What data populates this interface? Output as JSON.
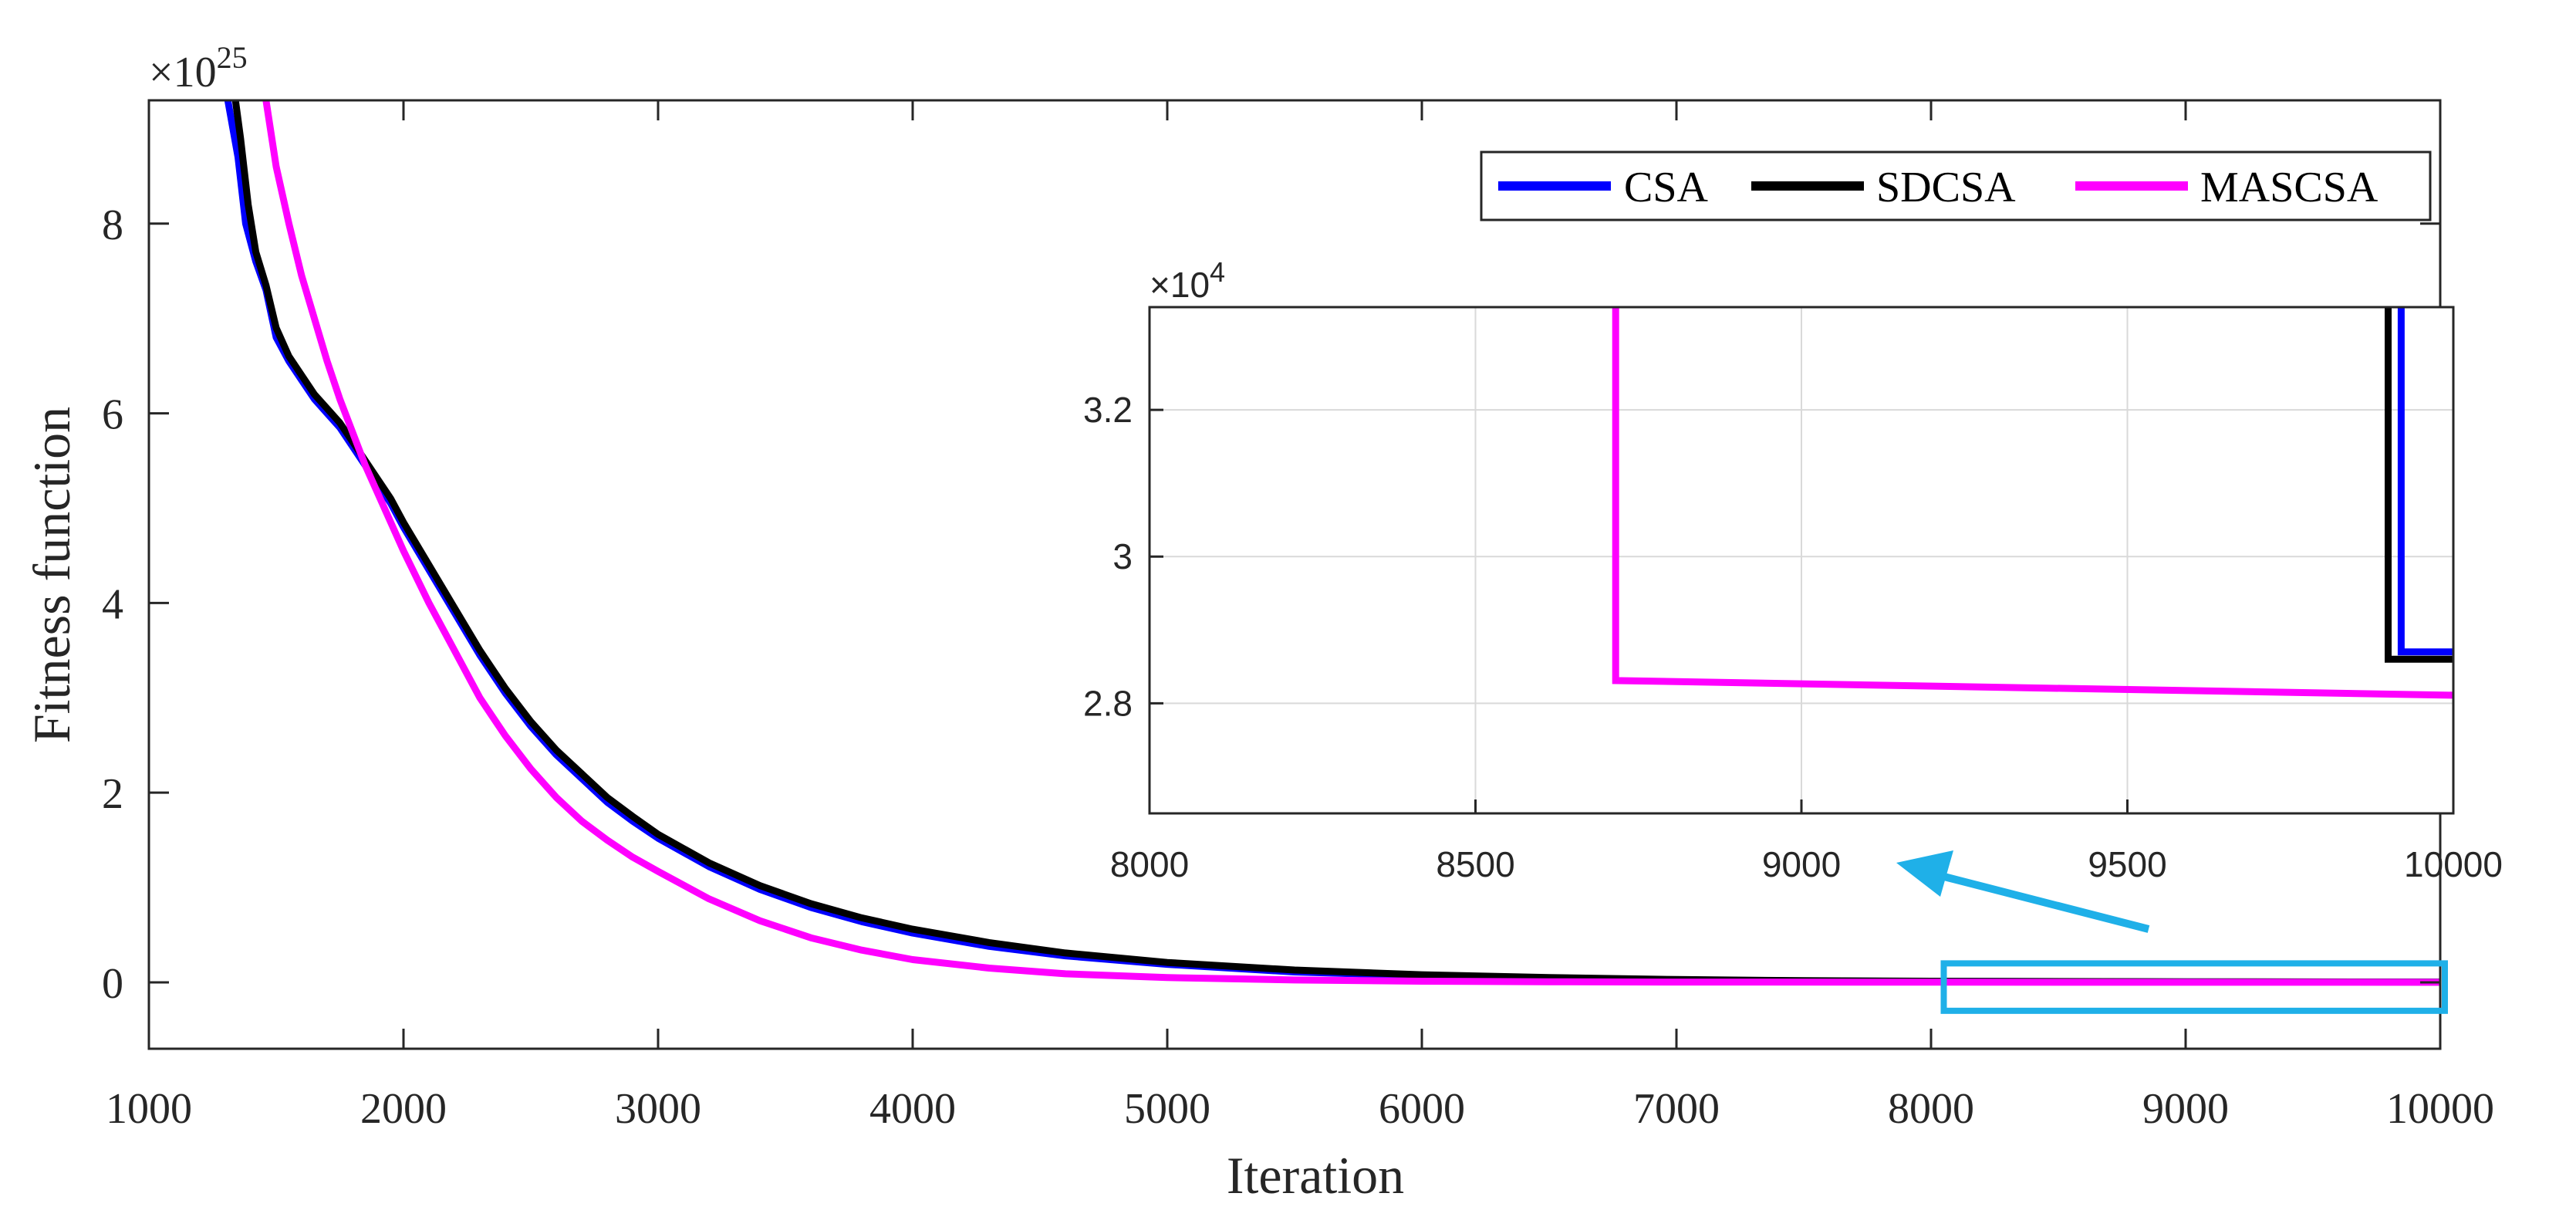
{
  "chart_data": [
    {
      "type": "line",
      "xlabel": "Iteration",
      "ylabel": "Fitness function",
      "y_exponent_label": "×10",
      "y_exponent_power": "25",
      "xlim": [
        1000,
        10000
      ],
      "ylim": [
        -0.7,
        9.3
      ],
      "xticks": [
        1000,
        2000,
        3000,
        4000,
        5000,
        6000,
        7000,
        8000,
        9000,
        10000
      ],
      "yticks": [
        0,
        2,
        4,
        6,
        8
      ],
      "legend": {
        "placement": "top-right"
      },
      "series": [
        {
          "name": "CSA",
          "color": "#0000ff",
          "x": [
            1310,
            1350,
            1380,
            1420,
            1460,
            1500,
            1550,
            1600,
            1650,
            1700,
            1750,
            1800,
            1850,
            1900,
            1950,
            2000,
            2100,
            2200,
            2300,
            2400,
            2500,
            2600,
            2700,
            2800,
            2900,
            3000,
            3200,
            3400,
            3600,
            3800,
            4000,
            4300,
            4600,
            5000,
            5500,
            6000,
            6500,
            7000,
            7500,
            8000,
            9000,
            10000
          ],
          "y": [
            9.3,
            8.7,
            8.0,
            7.6,
            7.3,
            6.8,
            6.55,
            6.35,
            6.15,
            6.0,
            5.85,
            5.65,
            5.45,
            5.25,
            5.05,
            4.8,
            4.35,
            3.9,
            3.45,
            3.05,
            2.7,
            2.4,
            2.15,
            1.9,
            1.7,
            1.52,
            1.22,
            0.98,
            0.79,
            0.64,
            0.52,
            0.38,
            0.28,
            0.19,
            0.11,
            0.07,
            0.04,
            0.025,
            0.015,
            0.01,
            0.005,
            0.003
          ]
        },
        {
          "name": "SDCSA",
          "color": "#000000",
          "x": [
            1340,
            1360,
            1390,
            1420,
            1460,
            1500,
            1550,
            1600,
            1650,
            1700,
            1750,
            1800,
            1850,
            1900,
            1950,
            2000,
            2100,
            2200,
            2300,
            2400,
            2500,
            2600,
            2700,
            2800,
            2900,
            3000,
            3200,
            3400,
            3600,
            3800,
            4000,
            4300,
            4600,
            5000,
            5500,
            6000,
            6500,
            7000,
            7500,
            8000,
            9000,
            10000
          ],
          "y": [
            9.3,
            8.9,
            8.2,
            7.7,
            7.35,
            6.9,
            6.6,
            6.4,
            6.2,
            6.05,
            5.9,
            5.7,
            5.5,
            5.3,
            5.1,
            4.85,
            4.4,
            3.95,
            3.5,
            3.1,
            2.75,
            2.45,
            2.2,
            1.95,
            1.75,
            1.56,
            1.26,
            1.02,
            0.83,
            0.68,
            0.56,
            0.42,
            0.31,
            0.21,
            0.13,
            0.08,
            0.05,
            0.03,
            0.018,
            0.012,
            0.006,
            0.003
          ]
        },
        {
          "name": "MASCSA",
          "color": "#ff00ff",
          "x": [
            1460,
            1500,
            1550,
            1600,
            1650,
            1700,
            1750,
            1800,
            1850,
            1900,
            1950,
            2000,
            2100,
            2200,
            2300,
            2400,
            2500,
            2600,
            2700,
            2800,
            2900,
            3000,
            3200,
            3400,
            3600,
            3800,
            4000,
            4300,
            4600,
            5000,
            5500,
            6000,
            6500,
            7000,
            8000,
            9000,
            10000
          ],
          "y": [
            9.3,
            8.6,
            8.0,
            7.45,
            7.0,
            6.55,
            6.15,
            5.8,
            5.45,
            5.15,
            4.85,
            4.55,
            4.0,
            3.5,
            3.0,
            2.6,
            2.25,
            1.95,
            1.7,
            1.5,
            1.32,
            1.17,
            0.88,
            0.65,
            0.47,
            0.34,
            0.24,
            0.15,
            0.09,
            0.05,
            0.025,
            0.012,
            0.006,
            0.003,
            0.001,
            0.0005,
            0.0003
          ]
        }
      ],
      "highlight_box": {
        "color": "#1fb0e8",
        "x_range": [
          8050,
          10000
        ],
        "y_range": [
          -0.3,
          0.2
        ]
      }
    },
    {
      "type": "line",
      "inset": true,
      "y_exponent_label": "×10",
      "y_exponent_power": "4",
      "xlim": [
        8000,
        10000
      ],
      "ylim": [
        2.65,
        3.34
      ],
      "xticks": [
        8000,
        8500,
        9000,
        9500,
        10000
      ],
      "yticks": [
        2.8,
        3,
        3.2
      ],
      "ytick_labels": [
        "2.8",
        "3",
        "3.2"
      ],
      "grid": true,
      "series": [
        {
          "name": "CSA",
          "color": "#0000ff",
          "x": [
            9920,
            9920,
            10000
          ],
          "y": [
            3.34,
            2.87,
            2.87
          ]
        },
        {
          "name": "SDCSA",
          "color": "#000000",
          "x": [
            9900,
            9900,
            10000
          ],
          "y": [
            3.34,
            2.86,
            2.86
          ]
        },
        {
          "name": "MASCSA",
          "color": "#ff00ff",
          "x": [
            8715,
            8715,
            10000
          ],
          "y": [
            3.34,
            2.831,
            2.811
          ]
        }
      ]
    }
  ]
}
